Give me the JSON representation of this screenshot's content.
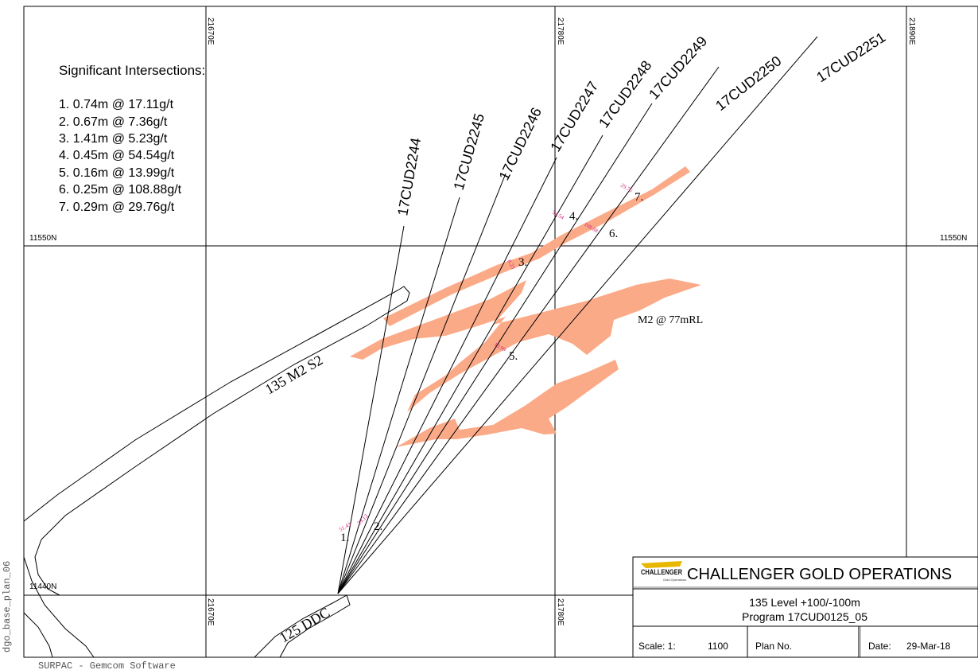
{
  "side_label": "dgo_base_plan_06",
  "footer_software": "SURPAC - Gemcom Software",
  "intersections": {
    "heading": "Significant Intersections:",
    "items": [
      "1. 0.74m @ 17.11g/t",
      "2. 0.67m @ 7.36g/t",
      "3. 1.41m @ 5.23g/t",
      "4. 0.45m @ 54.54g/t",
      "5. 0.16m @ 13.99g/t",
      "6. 0.25m @ 108.88g/t",
      "7. 0.29m @ 29.76g/t"
    ]
  },
  "grid": {
    "eastings": [
      "21670E",
      "21780E",
      "21890E"
    ],
    "northings": [
      "11550N",
      "11440N"
    ]
  },
  "drillholes": [
    {
      "name": "17CUD2244"
    },
    {
      "name": "17CUD2245"
    },
    {
      "name": "17CUD2246"
    },
    {
      "name": "17CUD2247"
    },
    {
      "name": "17CUD2248"
    },
    {
      "name": "17CUD2249"
    },
    {
      "name": "17CUD2250"
    },
    {
      "name": "17CUD2251"
    }
  ],
  "markers": [
    "1.",
    "2.",
    "3.",
    "4.",
    "5.",
    "6.",
    "7."
  ],
  "assays": [
    "51.43",
    "29.13",
    "8.23",
    "54.54",
    "108.88",
    "29.76",
    "13.99"
  ],
  "drive_labels": {
    "drive_135": "135 M2 S2",
    "drive_125": "125 DDC",
    "orebody": "M2 @ 77mRL"
  },
  "title_block": {
    "logo_text": "CHALLENGER",
    "logo_sub": "Gold Operations",
    "company": "CHALLENGER GOLD OPERATIONS",
    "level": "135 Level +100/-100m",
    "program": "Program 17CUD0125_05",
    "scale_label": "Scale: 1:",
    "scale_value": "1100",
    "plan_label": "Plan No.",
    "date_label": "Date:",
    "date_value": "29-Mar-18"
  },
  "colors": {
    "ore": "#FBAA88",
    "assay_text": "#D6207A",
    "line": "#000000"
  }
}
